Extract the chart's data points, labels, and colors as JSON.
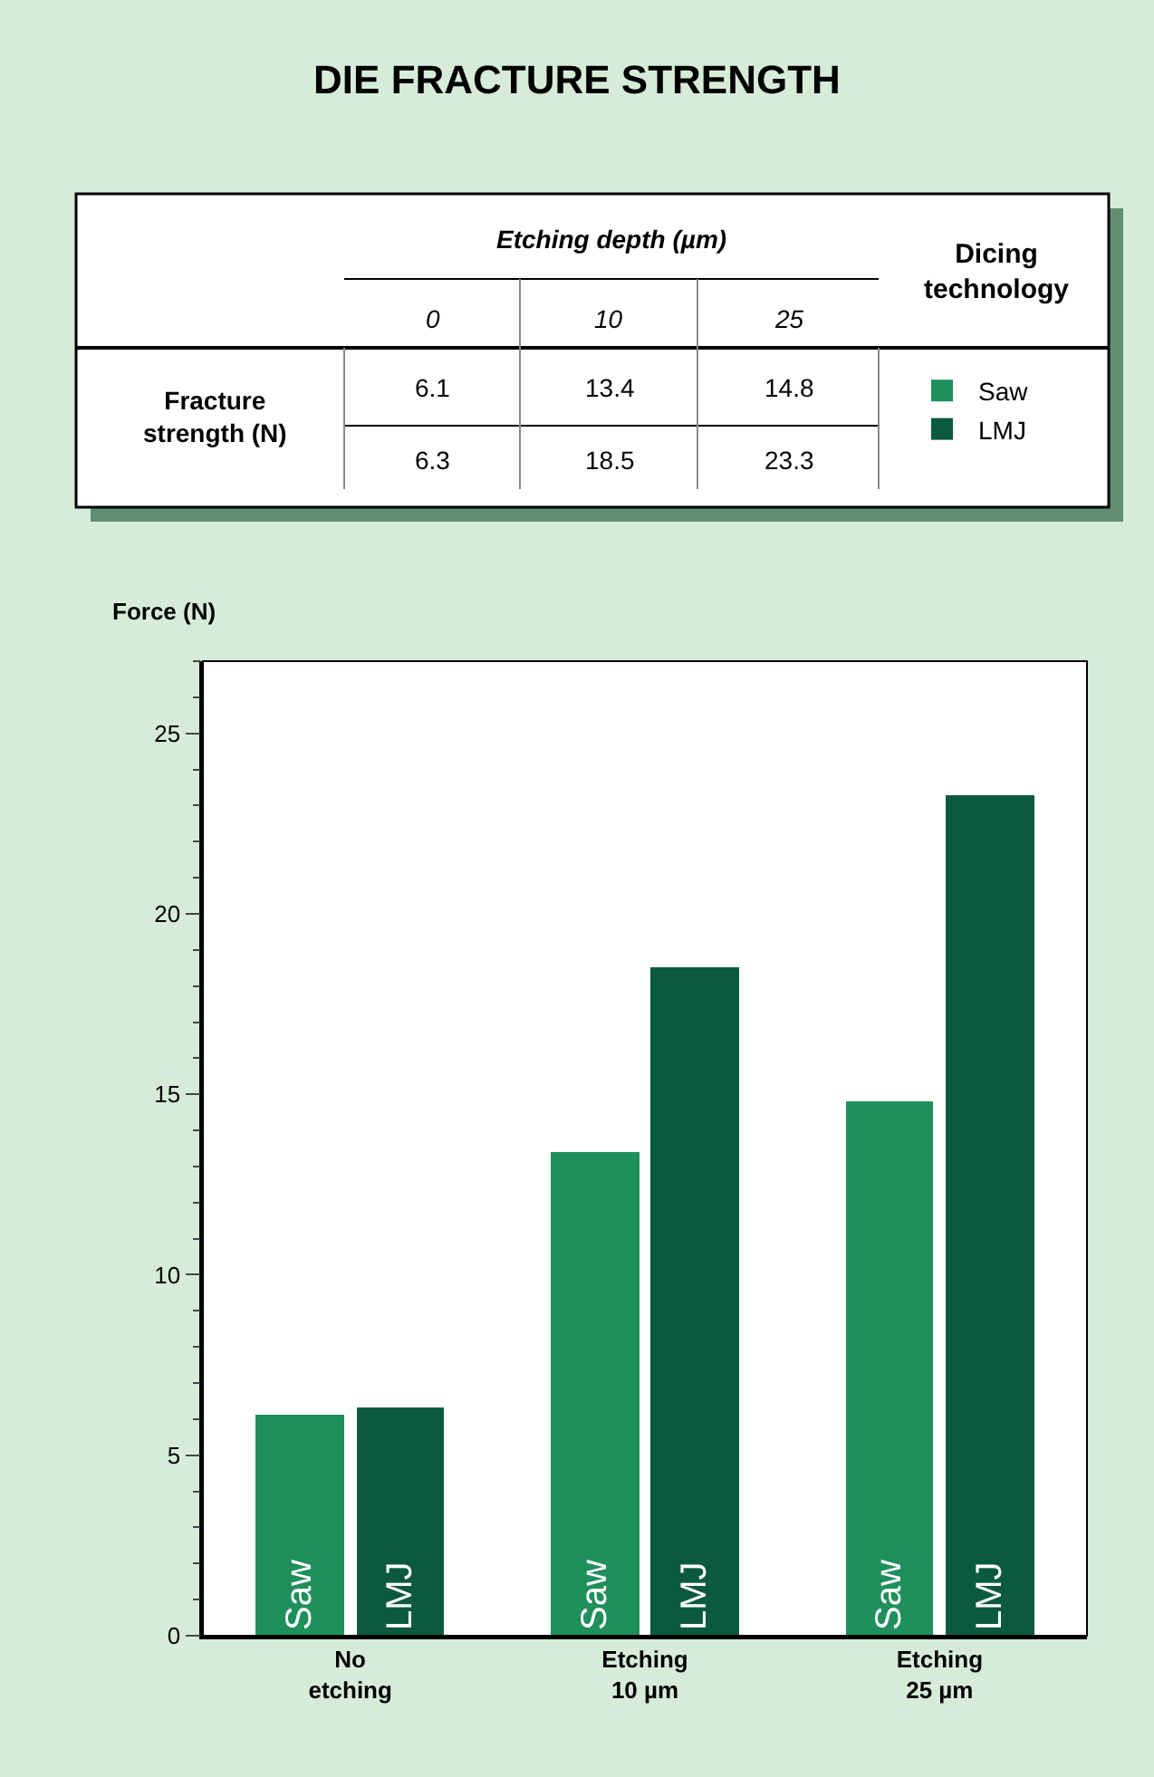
{
  "chart_data": [
    {
      "type": "other",
      "title": "DIE FRACTURE STRENGTH",
      "annotations": [
        "Etching depth (µm)",
        "0",
        "10",
        "25",
        "Dicing technology",
        "Fracture strength (N)",
        "6.1",
        "13.4",
        "14.8",
        "6.3",
        "18.5",
        "23.3"
      ]
    },
    {
      "type": "bar",
      "ylabel": "Force (N)",
      "categories": [
        "No etching",
        "Etching 10 µm",
        "Etching 25 µm"
      ],
      "series": [
        {
          "name": "Saw",
          "color": "#1f8f5c",
          "values": [
            6.1,
            13.4,
            14.8
          ]
        },
        {
          "name": "LMJ",
          "color": "#0c5a3d",
          "values": [
            6.3,
            18.5,
            23.3
          ]
        }
      ],
      "ylim": [
        0,
        27
      ],
      "yticks": [
        0,
        5,
        10,
        15,
        20,
        25
      ],
      "legend": "top right"
    }
  ]
}
